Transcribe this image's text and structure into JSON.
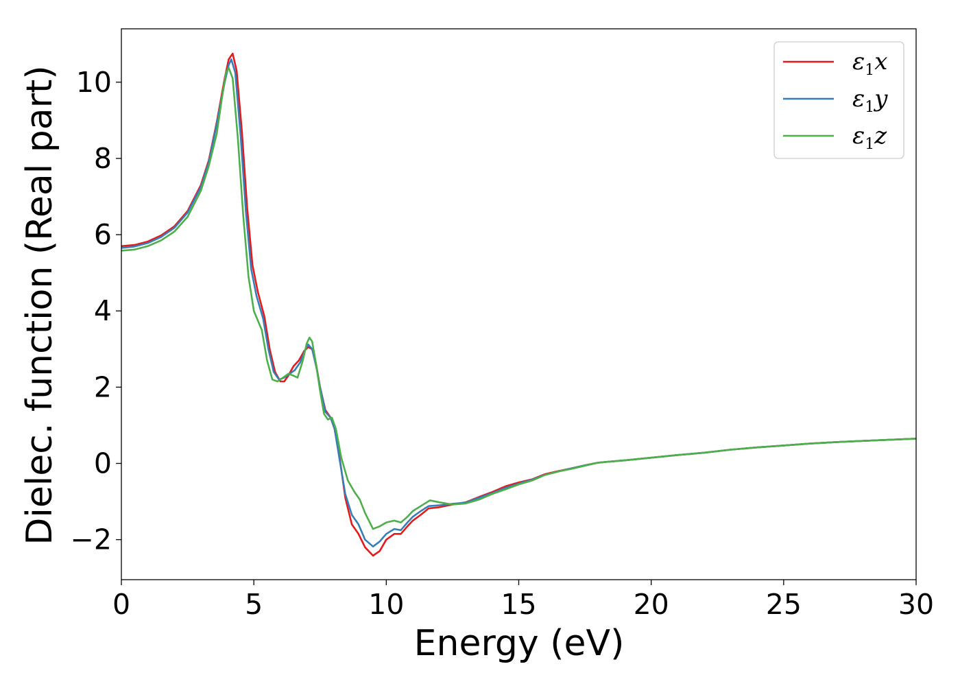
{
  "chart_data": {
    "type": "line",
    "xlabel": "Energy (eV)",
    "ylabel": "Dielec. function (Real part)",
    "xlim": [
      0,
      30
    ],
    "ylim": [
      -3.05,
      11.4
    ],
    "xticks": [
      0,
      5,
      10,
      15,
      20,
      25,
      30
    ],
    "xtick_labels": [
      "0",
      "5",
      "10",
      "15",
      "20",
      "25",
      "30"
    ],
    "yticks": [
      -2,
      0,
      2,
      4,
      6,
      8,
      10
    ],
    "ytick_labels": [
      "−2",
      "0",
      "2",
      "4",
      "6",
      "8",
      "10"
    ],
    "grid": false,
    "legend_position": "upper-right",
    "series": [
      {
        "name": "ε₁x",
        "legend": {
          "symbol": "ε",
          "sub": "1",
          "suffix": "x"
        },
        "color": "#e41a1c",
        "points": [
          [
            0,
            5.7
          ],
          [
            0.5,
            5.73
          ],
          [
            1,
            5.82
          ],
          [
            1.5,
            5.98
          ],
          [
            2,
            6.22
          ],
          [
            2.5,
            6.62
          ],
          [
            3,
            7.3
          ],
          [
            3.3,
            7.95
          ],
          [
            3.6,
            8.95
          ],
          [
            3.9,
            10.1
          ],
          [
            4.05,
            10.6
          ],
          [
            4.2,
            10.75
          ],
          [
            4.35,
            10.3
          ],
          [
            4.55,
            8.7
          ],
          [
            4.75,
            6.7
          ],
          [
            4.95,
            5.2
          ],
          [
            5.15,
            4.5
          ],
          [
            5.4,
            3.85
          ],
          [
            5.6,
            3.0
          ],
          [
            5.8,
            2.4
          ],
          [
            6.0,
            2.15
          ],
          [
            6.15,
            2.15
          ],
          [
            6.3,
            2.3
          ],
          [
            6.5,
            2.55
          ],
          [
            6.7,
            2.7
          ],
          [
            6.9,
            2.95
          ],
          [
            7.05,
            3.05
          ],
          [
            7.2,
            3.0
          ],
          [
            7.35,
            2.6
          ],
          [
            7.5,
            2.0
          ],
          [
            7.7,
            1.4
          ],
          [
            7.9,
            1.2
          ],
          [
            8.05,
            0.9
          ],
          [
            8.25,
            0.1
          ],
          [
            8.45,
            -0.9
          ],
          [
            8.7,
            -1.6
          ],
          [
            8.95,
            -1.85
          ],
          [
            9.2,
            -2.2
          ],
          [
            9.5,
            -2.42
          ],
          [
            9.75,
            -2.3
          ],
          [
            10.0,
            -2.0
          ],
          [
            10.3,
            -1.85
          ],
          [
            10.55,
            -1.85
          ],
          [
            10.8,
            -1.65
          ],
          [
            11.0,
            -1.5
          ],
          [
            11.3,
            -1.35
          ],
          [
            11.6,
            -1.18
          ],
          [
            12.0,
            -1.15
          ],
          [
            12.5,
            -1.08
          ],
          [
            13.0,
            -1.02
          ],
          [
            13.5,
            -0.88
          ],
          [
            14.0,
            -0.75
          ],
          [
            14.5,
            -0.6
          ],
          [
            15.0,
            -0.5
          ],
          [
            15.5,
            -0.42
          ],
          [
            16.0,
            -0.28
          ],
          [
            16.5,
            -0.2
          ],
          [
            17.0,
            -0.13
          ],
          [
            17.5,
            -0.05
          ],
          [
            18.0,
            0.02
          ],
          [
            18.5,
            0.05
          ],
          [
            19.0,
            0.08
          ],
          [
            20.0,
            0.15
          ],
          [
            21.0,
            0.22
          ],
          [
            22.0,
            0.28
          ],
          [
            23.0,
            0.36
          ],
          [
            24.0,
            0.42
          ],
          [
            25.0,
            0.47
          ],
          [
            26.0,
            0.52
          ],
          [
            27.0,
            0.56
          ],
          [
            28.0,
            0.59
          ],
          [
            29.0,
            0.62
          ],
          [
            30.0,
            0.65
          ]
        ]
      },
      {
        "name": "ε₁y",
        "legend": {
          "symbol": "ε",
          "sub": "1",
          "suffix": "y"
        },
        "color": "#377eb8",
        "points": [
          [
            0,
            5.65
          ],
          [
            0.5,
            5.69
          ],
          [
            1,
            5.78
          ],
          [
            1.5,
            5.94
          ],
          [
            2,
            6.18
          ],
          [
            2.5,
            6.58
          ],
          [
            3,
            7.25
          ],
          [
            3.3,
            7.9
          ],
          [
            3.6,
            8.9
          ],
          [
            3.9,
            10.0
          ],
          [
            4.05,
            10.45
          ],
          [
            4.15,
            10.6
          ],
          [
            4.3,
            10.25
          ],
          [
            4.5,
            8.6
          ],
          [
            4.7,
            6.6
          ],
          [
            4.9,
            5.1
          ],
          [
            5.1,
            4.4
          ],
          [
            5.35,
            3.8
          ],
          [
            5.55,
            3.0
          ],
          [
            5.75,
            2.4
          ],
          [
            5.95,
            2.2
          ],
          [
            6.15,
            2.25
          ],
          [
            6.35,
            2.35
          ],
          [
            6.55,
            2.45
          ],
          [
            6.75,
            2.65
          ],
          [
            6.95,
            3.0
          ],
          [
            7.05,
            3.12
          ],
          [
            7.2,
            3.0
          ],
          [
            7.35,
            2.55
          ],
          [
            7.5,
            2.0
          ],
          [
            7.7,
            1.35
          ],
          [
            7.9,
            1.2
          ],
          [
            8.05,
            0.9
          ],
          [
            8.25,
            0.05
          ],
          [
            8.45,
            -0.8
          ],
          [
            8.7,
            -1.35
          ],
          [
            8.95,
            -1.6
          ],
          [
            9.2,
            -2.0
          ],
          [
            9.5,
            -2.18
          ],
          [
            9.75,
            -2.05
          ],
          [
            10.0,
            -1.85
          ],
          [
            10.3,
            -1.72
          ],
          [
            10.55,
            -1.75
          ],
          [
            10.8,
            -1.55
          ],
          [
            11.0,
            -1.4
          ],
          [
            11.3,
            -1.25
          ],
          [
            11.6,
            -1.12
          ],
          [
            12.0,
            -1.1
          ],
          [
            12.5,
            -1.06
          ],
          [
            13.0,
            -1.03
          ],
          [
            13.5,
            -0.9
          ],
          [
            14.0,
            -0.78
          ],
          [
            14.5,
            -0.64
          ],
          [
            15.0,
            -0.53
          ],
          [
            15.5,
            -0.43
          ],
          [
            16.0,
            -0.3
          ],
          [
            16.5,
            -0.21
          ],
          [
            17.0,
            -0.13
          ],
          [
            17.5,
            -0.05
          ],
          [
            18.0,
            0.02
          ],
          [
            18.5,
            0.05
          ],
          [
            19.0,
            0.08
          ],
          [
            20.0,
            0.15
          ],
          [
            21.0,
            0.22
          ],
          [
            22.0,
            0.28
          ],
          [
            23.0,
            0.36
          ],
          [
            24.0,
            0.42
          ],
          [
            25.0,
            0.47
          ],
          [
            26.0,
            0.52
          ],
          [
            27.0,
            0.56
          ],
          [
            28.0,
            0.59
          ],
          [
            29.0,
            0.62
          ],
          [
            30.0,
            0.65
          ]
        ]
      },
      {
        "name": "ε₁z",
        "legend": {
          "symbol": "ε",
          "sub": "1",
          "suffix": "z"
        },
        "color": "#4daf4a",
        "points": [
          [
            0,
            5.58
          ],
          [
            0.5,
            5.61
          ],
          [
            1,
            5.7
          ],
          [
            1.5,
            5.85
          ],
          [
            2,
            6.08
          ],
          [
            2.5,
            6.47
          ],
          [
            3,
            7.15
          ],
          [
            3.3,
            7.8
          ],
          [
            3.6,
            8.65
          ],
          [
            3.8,
            9.6
          ],
          [
            3.95,
            10.25
          ],
          [
            4.05,
            10.38
          ],
          [
            4.2,
            10.1
          ],
          [
            4.4,
            8.5
          ],
          [
            4.6,
            6.5
          ],
          [
            4.8,
            4.9
          ],
          [
            5.0,
            4.0
          ],
          [
            5.3,
            3.5
          ],
          [
            5.5,
            2.7
          ],
          [
            5.7,
            2.2
          ],
          [
            5.9,
            2.15
          ],
          [
            6.1,
            2.25
          ],
          [
            6.3,
            2.35
          ],
          [
            6.5,
            2.3
          ],
          [
            6.65,
            2.25
          ],
          [
            6.85,
            2.7
          ],
          [
            7.0,
            3.15
          ],
          [
            7.1,
            3.3
          ],
          [
            7.2,
            3.2
          ],
          [
            7.35,
            2.6
          ],
          [
            7.5,
            1.9
          ],
          [
            7.65,
            1.3
          ],
          [
            7.8,
            1.15
          ],
          [
            7.95,
            1.2
          ],
          [
            8.1,
            0.9
          ],
          [
            8.3,
            0.15
          ],
          [
            8.55,
            -0.45
          ],
          [
            8.8,
            -0.75
          ],
          [
            9.0,
            -0.95
          ],
          [
            9.2,
            -1.3
          ],
          [
            9.5,
            -1.72
          ],
          [
            9.75,
            -1.65
          ],
          [
            10.0,
            -1.55
          ],
          [
            10.3,
            -1.5
          ],
          [
            10.55,
            -1.55
          ],
          [
            10.8,
            -1.4
          ],
          [
            11.0,
            -1.25
          ],
          [
            11.3,
            -1.12
          ],
          [
            11.65,
            -0.97
          ],
          [
            12.0,
            -1.02
          ],
          [
            12.5,
            -1.08
          ],
          [
            13.0,
            -1.05
          ],
          [
            13.5,
            -0.95
          ],
          [
            14.0,
            -0.8
          ],
          [
            14.5,
            -0.68
          ],
          [
            15.0,
            -0.55
          ],
          [
            15.5,
            -0.45
          ],
          [
            16.0,
            -0.3
          ],
          [
            16.5,
            -0.21
          ],
          [
            17.0,
            -0.14
          ],
          [
            17.5,
            -0.06
          ],
          [
            18.0,
            0.02
          ],
          [
            18.5,
            0.05
          ],
          [
            19.0,
            0.08
          ],
          [
            20.0,
            0.15
          ],
          [
            21.0,
            0.22
          ],
          [
            22.0,
            0.28
          ],
          [
            23.0,
            0.36
          ],
          [
            24.0,
            0.42
          ],
          [
            25.0,
            0.47
          ],
          [
            26.0,
            0.52
          ],
          [
            27.0,
            0.56
          ],
          [
            28.0,
            0.59
          ],
          [
            29.0,
            0.62
          ],
          [
            30.0,
            0.65
          ]
        ]
      }
    ]
  }
}
